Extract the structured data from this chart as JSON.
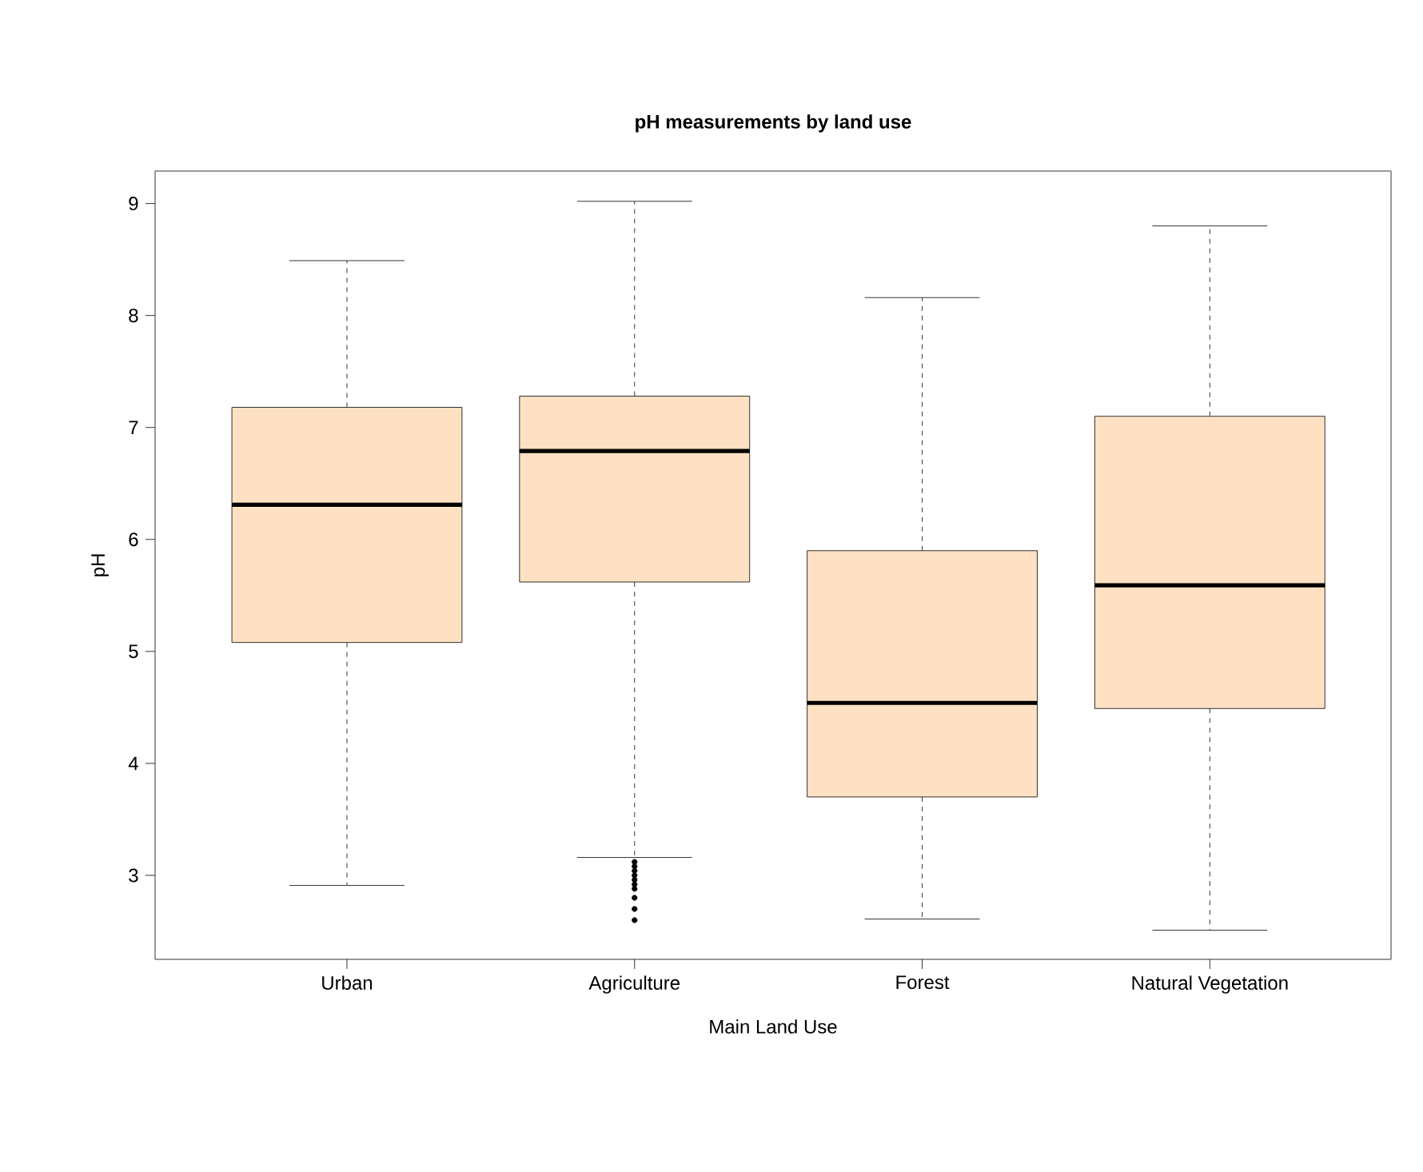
{
  "chart_data": {
    "type": "box",
    "title": "pH measurements by land use",
    "xlabel": "Main Land Use",
    "ylabel": "pH",
    "categories": [
      "Urban",
      "Agriculture",
      "Forest",
      "Natural Vegetation"
    ],
    "boxes": [
      {
        "low": 2.91,
        "q1": 5.08,
        "median": 6.31,
        "q3": 7.18,
        "high": 8.49
      },
      {
        "low": 3.16,
        "q1": 5.62,
        "median": 6.79,
        "q3": 7.28,
        "high": 9.02,
        "outliers": [
          3.12,
          3.08,
          3.04,
          3.0,
          2.96,
          2.92,
          2.88,
          2.8,
          2.7,
          2.6
        ]
      },
      {
        "low": 2.61,
        "q1": 3.7,
        "median": 4.54,
        "q3": 5.9,
        "high": 8.16
      },
      {
        "low": 2.51,
        "q1": 4.49,
        "median": 5.59,
        "q3": 7.1,
        "high": 8.8
      }
    ],
    "color": "#fde1c2",
    "marker": "circle",
    "ylim": [
      2.25,
      9.29
    ],
    "yticks": [
      3,
      4,
      5,
      6,
      7,
      8,
      9
    ]
  }
}
